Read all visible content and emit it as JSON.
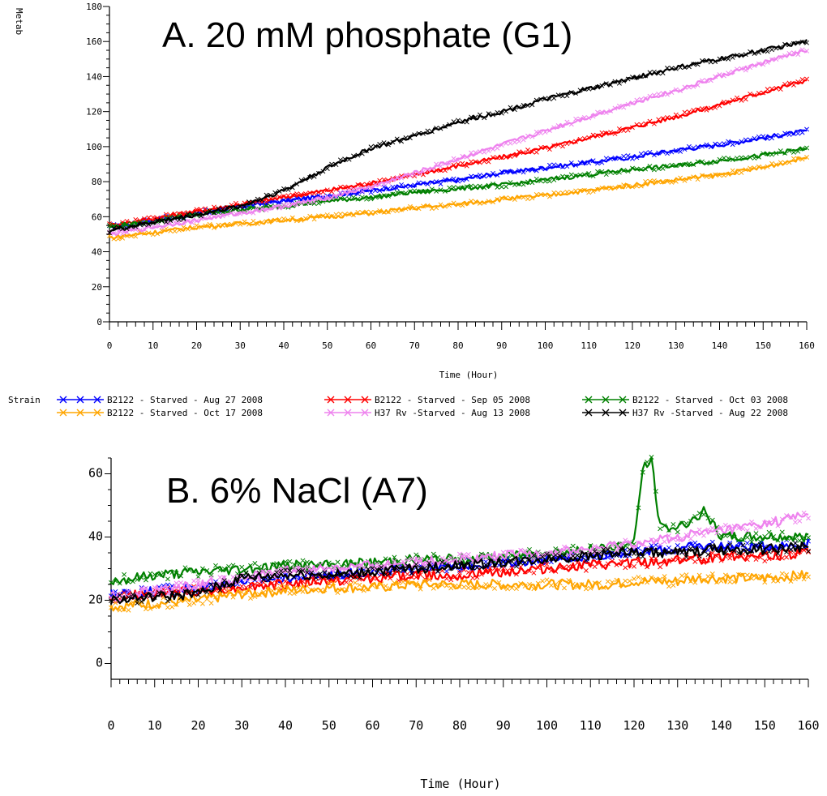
{
  "chart_data": [
    {
      "type": "line",
      "title": "A. 20 mM phosphate (G1)",
      "xlabel": "Time (Hour)",
      "ylabel": "Metab",
      "xlim": [
        0,
        160
      ],
      "ylim": [
        0,
        180
      ],
      "xticks": [
        0,
        10,
        20,
        30,
        40,
        50,
        60,
        70,
        80,
        90,
        100,
        110,
        120,
        130,
        140,
        150,
        160
      ],
      "yticks": [
        0,
        20,
        40,
        60,
        80,
        100,
        120,
        140,
        160,
        180
      ],
      "ytick_labels": [
        "0",
        "20",
        "40",
        "60",
        "80",
        "100",
        "120",
        "140",
        "160",
        "180"
      ],
      "x": [
        0,
        10,
        20,
        30,
        40,
        50,
        60,
        70,
        80,
        90,
        100,
        110,
        120,
        130,
        140,
        150,
        160
      ],
      "series": [
        {
          "name": "B2122 - Starved - Aug 27 2008",
          "color": "#0000ff",
          "marker": "x",
          "values": [
            54,
            58,
            62,
            66,
            69,
            72,
            75,
            78,
            81,
            85,
            88,
            91,
            94,
            98,
            101,
            105,
            109
          ]
        },
        {
          "name": "B2122 - Starved - Sep 05 2008",
          "color": "#ff0000",
          "marker": "x",
          "values": [
            55,
            59,
            63,
            67,
            71,
            75,
            79,
            84,
            89,
            94,
            99,
            105,
            111,
            117,
            124,
            131,
            138
          ]
        },
        {
          "name": "B2122 - Starved - Oct 03 2008",
          "color": "#008000",
          "marker": "x",
          "values": [
            54,
            57,
            61,
            64,
            66,
            69,
            71,
            74,
            76,
            78,
            81,
            84,
            87,
            89,
            92,
            95,
            99
          ]
        },
        {
          "name": "B2122 - Starved - Oct 17 2008",
          "color": "#ffa500",
          "marker": "x",
          "values": [
            48,
            51,
            54,
            56,
            58,
            60,
            62,
            65,
            67,
            70,
            72,
            75,
            78,
            81,
            84,
            88,
            94
          ]
        },
        {
          "name": "H37 Rv -Starved - Aug 13 2008",
          "color": "#ee82ee",
          "marker": "x",
          "values": [
            50,
            54,
            58,
            62,
            66,
            71,
            77,
            85,
            93,
            101,
            109,
            117,
            125,
            132,
            140,
            148,
            155
          ]
        },
        {
          "name": "H37 Rv -Starved - Aug 22 2008",
          "color": "#000000",
          "marker": "x",
          "values": [
            52,
            57,
            61,
            66,
            75,
            88,
            99,
            106,
            114,
            120,
            127,
            133,
            139,
            145,
            150,
            155,
            160
          ]
        }
      ]
    },
    {
      "type": "line",
      "title": "B. 6% NaCl (A7)",
      "xlabel": "Time (Hour)",
      "ylabel": "",
      "xlim": [
        0,
        160
      ],
      "ylim": [
        -5,
        65
      ],
      "xticks": [
        0,
        10,
        20,
        30,
        40,
        50,
        60,
        70,
        80,
        90,
        100,
        110,
        120,
        130,
        140,
        150,
        160
      ],
      "yticks": [
        0,
        20,
        40,
        60
      ],
      "x": [
        0,
        10,
        20,
        30,
        40,
        50,
        60,
        70,
        80,
        90,
        100,
        110,
        115,
        120,
        122,
        124,
        126,
        130,
        134,
        136,
        140,
        150,
        160
      ],
      "series": [
        {
          "name": "B2122 - Starved - Aug 27 2008",
          "color": "#0000ff",
          "marker": "x",
          "values": [
            22,
            23,
            24,
            26,
            27,
            28,
            29,
            30,
            31,
            32,
            33,
            34,
            35,
            35,
            35,
            36,
            36,
            36,
            37,
            37,
            37,
            37,
            38
          ]
        },
        {
          "name": "B2122 - Starved - Sep 05 2008",
          "color": "#ff0000",
          "marker": "x",
          "values": [
            21,
            22,
            23,
            24,
            25,
            26,
            27,
            28,
            28,
            29,
            30,
            31,
            31,
            32,
            32,
            32,
            32,
            33,
            33,
            33,
            34,
            34,
            35
          ]
        },
        {
          "name": "B2122 - Starved - Oct 03 2008",
          "color": "#008000",
          "marker": "x",
          "values": [
            26,
            28,
            29,
            30,
            31,
            31,
            32,
            33,
            33,
            34,
            35,
            36,
            37,
            38,
            62,
            64,
            43,
            43,
            46,
            48,
            40,
            40,
            40
          ]
        },
        {
          "name": "B2122 - Starved - Oct 17 2008",
          "color": "#ffa500",
          "marker": "x",
          "values": [
            18,
            19,
            20,
            22,
            23,
            24,
            24,
            25,
            25,
            25,
            25,
            25,
            25,
            26,
            26,
            26,
            26,
            26,
            27,
            27,
            27,
            27,
            28
          ]
        },
        {
          "name": "H37 Rv -Starved - Aug 13 2008",
          "color": "#ee82ee",
          "marker": "x",
          "values": [
            21,
            23,
            25,
            27,
            29,
            30,
            31,
            32,
            33,
            34,
            35,
            36,
            37,
            38,
            38,
            38,
            39,
            40,
            41,
            41,
            42,
            44,
            47
          ]
        },
        {
          "name": "H37 Rv -Starved - Aug 22 2008",
          "color": "#000000",
          "marker": "x",
          "values": [
            20,
            21,
            22,
            27,
            28,
            28,
            29,
            30,
            31,
            32,
            33,
            34,
            35,
            35,
            35,
            35,
            35,
            35,
            35,
            36,
            36,
            36,
            37
          ]
        }
      ]
    }
  ],
  "legend": {
    "title": "Strain",
    "entries": [
      {
        "label": "B2122 - Starved - Aug 27 2008",
        "color": "#0000ff"
      },
      {
        "label": "B2122 - Starved - Sep 05 2008",
        "color": "#ff0000"
      },
      {
        "label": "B2122 - Starved - Oct 03 2008",
        "color": "#008000"
      },
      {
        "label": "B2122 - Starved - Oct 17 2008",
        "color": "#ffa500"
      },
      {
        "label": "H37 Rv -Starved - Aug 13 2008",
        "color": "#ee82ee"
      },
      {
        "label": "H37 Rv -Starved - Aug 22 2008",
        "color": "#000000"
      }
    ]
  }
}
